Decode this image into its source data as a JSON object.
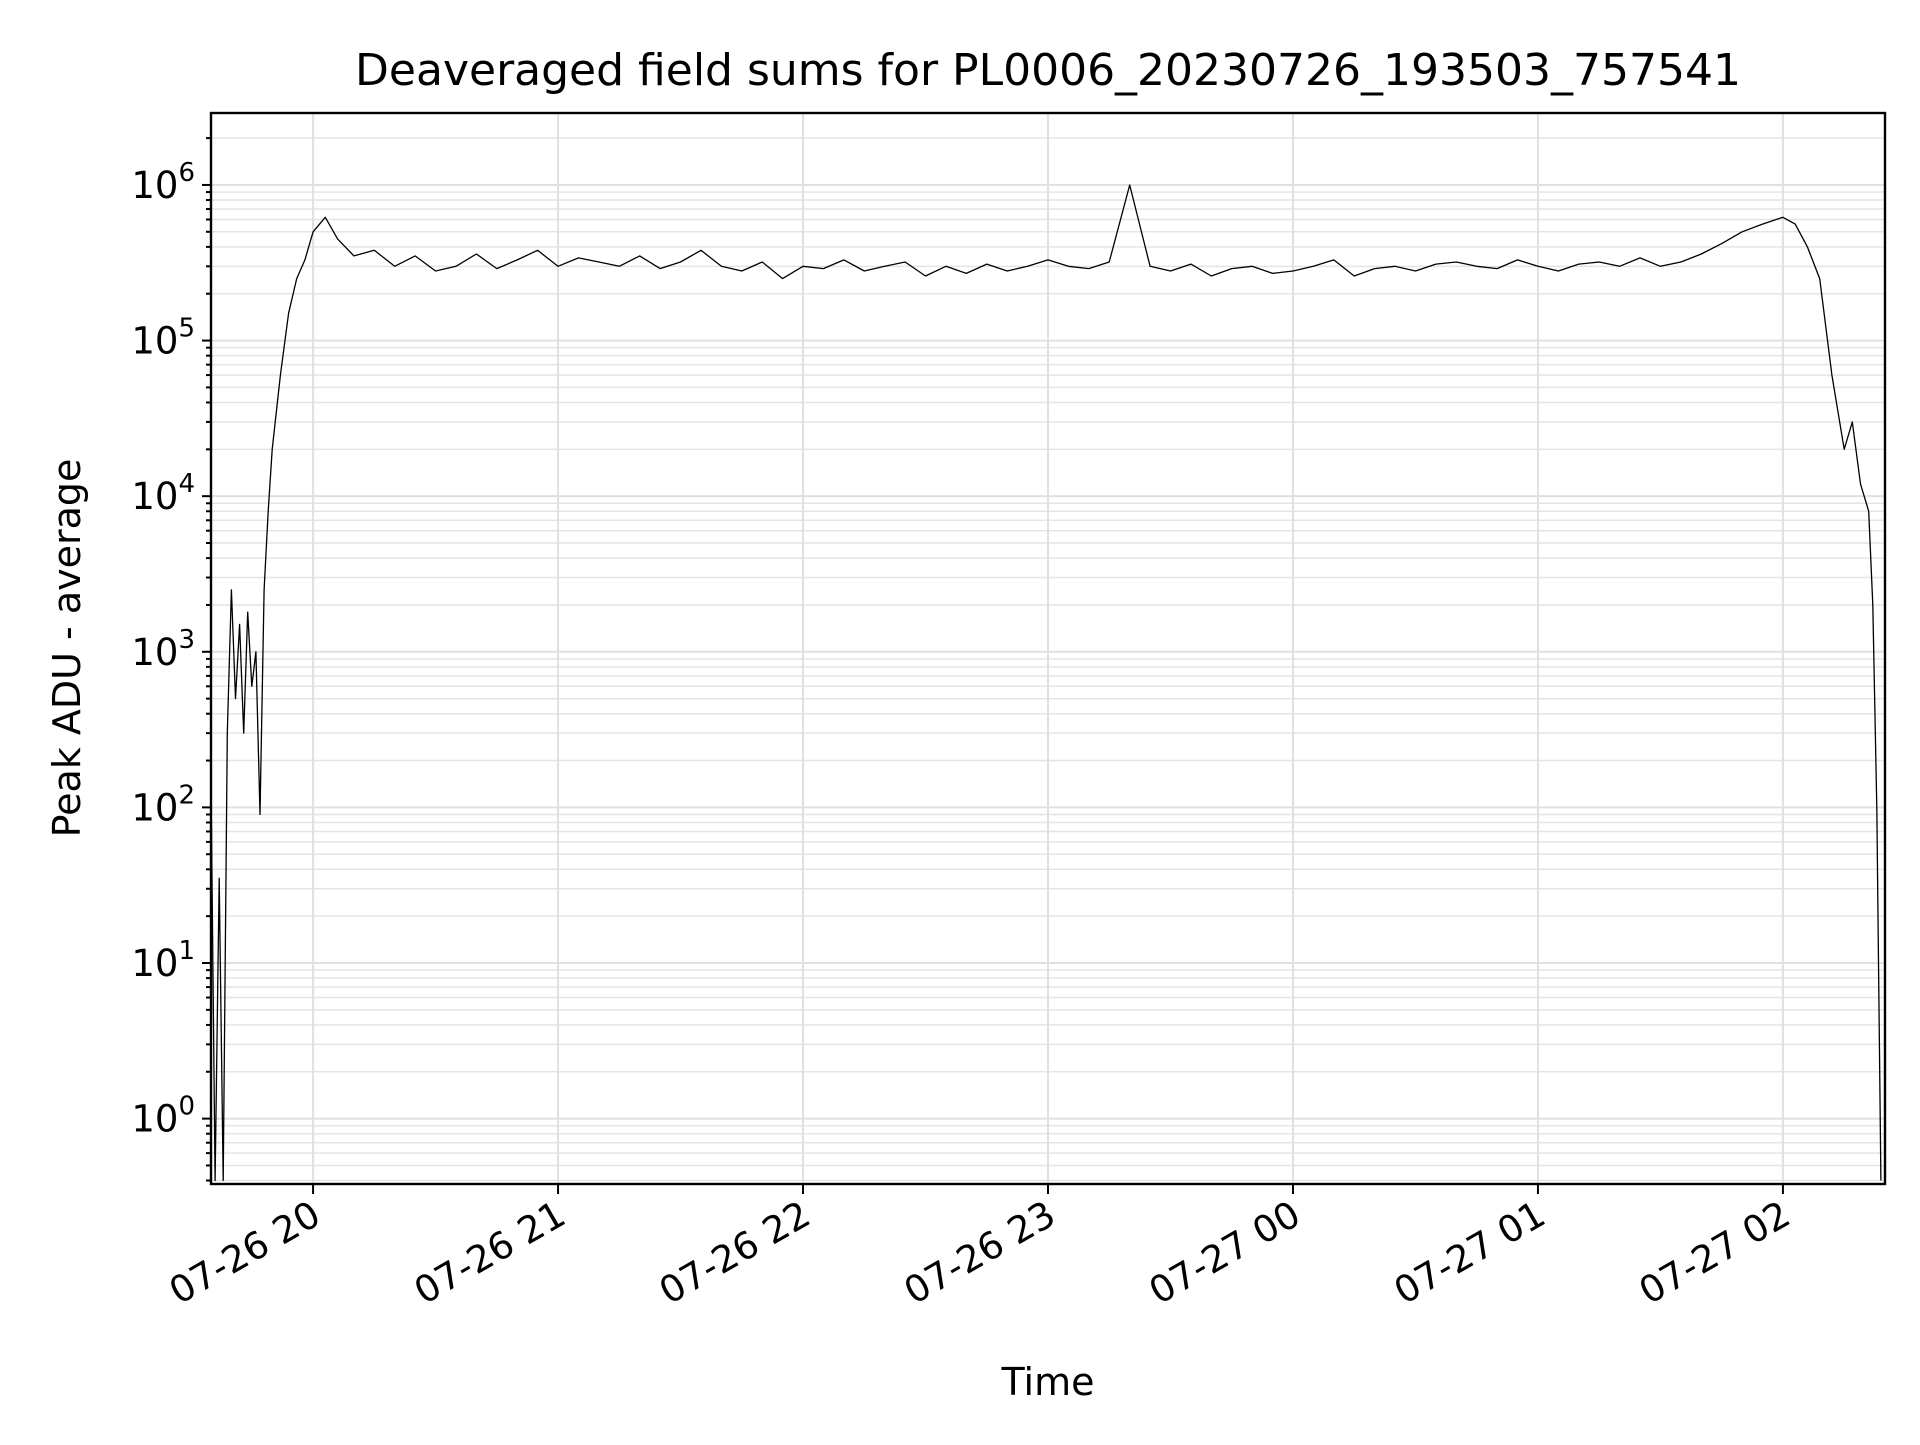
{
  "chart_data": {
    "type": "line",
    "title": "Deaveraged field sums for PL0006_20230726_193503_757541",
    "xlabel": "Time",
    "ylabel": "Peak ADU - average",
    "y_scale": "log",
    "grid": true,
    "grid_minor": true,
    "legend": "none",
    "line_color": "#000000",
    "xlim": [
      "2023-07-26 19:35",
      "2023-07-27 02:25"
    ],
    "ylim": [
      0.38,
      2900000
    ],
    "x_ticks": [
      {
        "label": "07-26 20",
        "value": "2023-07-26 20:00"
      },
      {
        "label": "07-26 21",
        "value": "2023-07-26 21:00"
      },
      {
        "label": "07-26 22",
        "value": "2023-07-26 22:00"
      },
      {
        "label": "07-26 23",
        "value": "2023-07-26 23:00"
      },
      {
        "label": "07-27 00",
        "value": "2023-07-27 00:00"
      },
      {
        "label": "07-27 01",
        "value": "2023-07-27 01:00"
      },
      {
        "label": "07-27 02",
        "value": "2023-07-27 02:00"
      }
    ],
    "y_ticks": [
      {
        "base": "10",
        "exp": "0",
        "value": 1
      },
      {
        "base": "10",
        "exp": "1",
        "value": 10
      },
      {
        "base": "10",
        "exp": "2",
        "value": 100
      },
      {
        "base": "10",
        "exp": "3",
        "value": 1000
      },
      {
        "base": "10",
        "exp": "4",
        "value": 10000
      },
      {
        "base": "10",
        "exp": "5",
        "value": 100000
      },
      {
        "base": "10",
        "exp": "6",
        "value": 1000000
      }
    ],
    "series": [
      {
        "x": [
          "2023-07-26 19:35",
          "2023-07-26 19:36",
          "2023-07-26 19:37",
          "2023-07-26 19:38",
          "2023-07-26 19:39",
          "2023-07-26 19:40",
          "2023-07-26 19:41",
          "2023-07-26 19:42",
          "2023-07-26 19:43",
          "2023-07-26 19:44",
          "2023-07-26 19:45",
          "2023-07-26 19:46",
          "2023-07-26 19:47",
          "2023-07-26 19:48",
          "2023-07-26 19:49",
          "2023-07-26 19:50",
          "2023-07-26 19:52",
          "2023-07-26 19:54",
          "2023-07-26 19:56",
          "2023-07-26 19:58",
          "2023-07-26 20:00",
          "2023-07-26 20:03",
          "2023-07-26 20:06",
          "2023-07-26 20:10",
          "2023-07-26 20:15",
          "2023-07-26 20:20",
          "2023-07-26 20:25",
          "2023-07-26 20:30",
          "2023-07-26 20:35",
          "2023-07-26 20:40",
          "2023-07-26 20:45",
          "2023-07-26 20:50",
          "2023-07-26 20:55",
          "2023-07-26 21:00",
          "2023-07-26 21:05",
          "2023-07-26 21:10",
          "2023-07-26 21:15",
          "2023-07-26 21:20",
          "2023-07-26 21:25",
          "2023-07-26 21:30",
          "2023-07-26 21:35",
          "2023-07-26 21:40",
          "2023-07-26 21:45",
          "2023-07-26 21:50",
          "2023-07-26 21:55",
          "2023-07-26 22:00",
          "2023-07-26 22:05",
          "2023-07-26 22:10",
          "2023-07-26 22:15",
          "2023-07-26 22:20",
          "2023-07-26 22:25",
          "2023-07-26 22:30",
          "2023-07-26 22:35",
          "2023-07-26 22:40",
          "2023-07-26 22:45",
          "2023-07-26 22:50",
          "2023-07-26 22:55",
          "2023-07-26 23:00",
          "2023-07-26 23:05",
          "2023-07-26 23:10",
          "2023-07-26 23:15",
          "2023-07-26 23:20",
          "2023-07-26 23:25",
          "2023-07-26 23:30",
          "2023-07-26 23:35",
          "2023-07-26 23:40",
          "2023-07-26 23:45",
          "2023-07-26 23:50",
          "2023-07-26 23:55",
          "2023-07-27 00:00",
          "2023-07-27 00:05",
          "2023-07-27 00:10",
          "2023-07-27 00:15",
          "2023-07-27 00:20",
          "2023-07-27 00:25",
          "2023-07-27 00:30",
          "2023-07-27 00:35",
          "2023-07-27 00:40",
          "2023-07-27 00:45",
          "2023-07-27 00:50",
          "2023-07-27 00:55",
          "2023-07-27 01:00",
          "2023-07-27 01:05",
          "2023-07-27 01:10",
          "2023-07-27 01:15",
          "2023-07-27 01:20",
          "2023-07-27 01:25",
          "2023-07-27 01:30",
          "2023-07-27 01:35",
          "2023-07-27 01:40",
          "2023-07-27 01:45",
          "2023-07-27 01:50",
          "2023-07-27 01:55",
          "2023-07-27 02:00",
          "2023-07-27 02:03",
          "2023-07-27 02:06",
          "2023-07-27 02:09",
          "2023-07-27 02:12",
          "2023-07-27 02:15",
          "2023-07-27 02:17",
          "2023-07-27 02:19",
          "2023-07-27 02:21",
          "2023-07-27 02:22",
          "2023-07-27 02:23",
          "2023-07-27 02:24"
        ],
        "y": [
          150,
          0.4,
          35,
          0.4,
          300,
          2500,
          500,
          1500,
          300,
          1800,
          600,
          1000,
          90,
          2500,
          8000,
          20000,
          60000,
          150000,
          250000,
          330000,
          500000,
          620000,
          450000,
          350000,
          380000,
          300000,
          350000,
          280000,
          300000,
          360000,
          290000,
          330000,
          380000,
          300000,
          340000,
          320000,
          300000,
          350000,
          290000,
          320000,
          380000,
          300000,
          280000,
          320000,
          250000,
          300000,
          290000,
          330000,
          280000,
          300000,
          320000,
          260000,
          300000,
          270000,
          310000,
          280000,
          300000,
          330000,
          300000,
          290000,
          320000,
          1000000,
          300000,
          280000,
          310000,
          260000,
          290000,
          300000,
          270000,
          280000,
          300000,
          330000,
          260000,
          290000,
          300000,
          280000,
          310000,
          320000,
          300000,
          290000,
          330000,
          300000,
          280000,
          310000,
          320000,
          300000,
          340000,
          300000,
          320000,
          360000,
          420000,
          500000,
          560000,
          620000,
          560000,
          400000,
          250000,
          60000,
          20000,
          30000,
          12000,
          8000,
          2000,
          100,
          0.4
        ]
      }
    ]
  }
}
